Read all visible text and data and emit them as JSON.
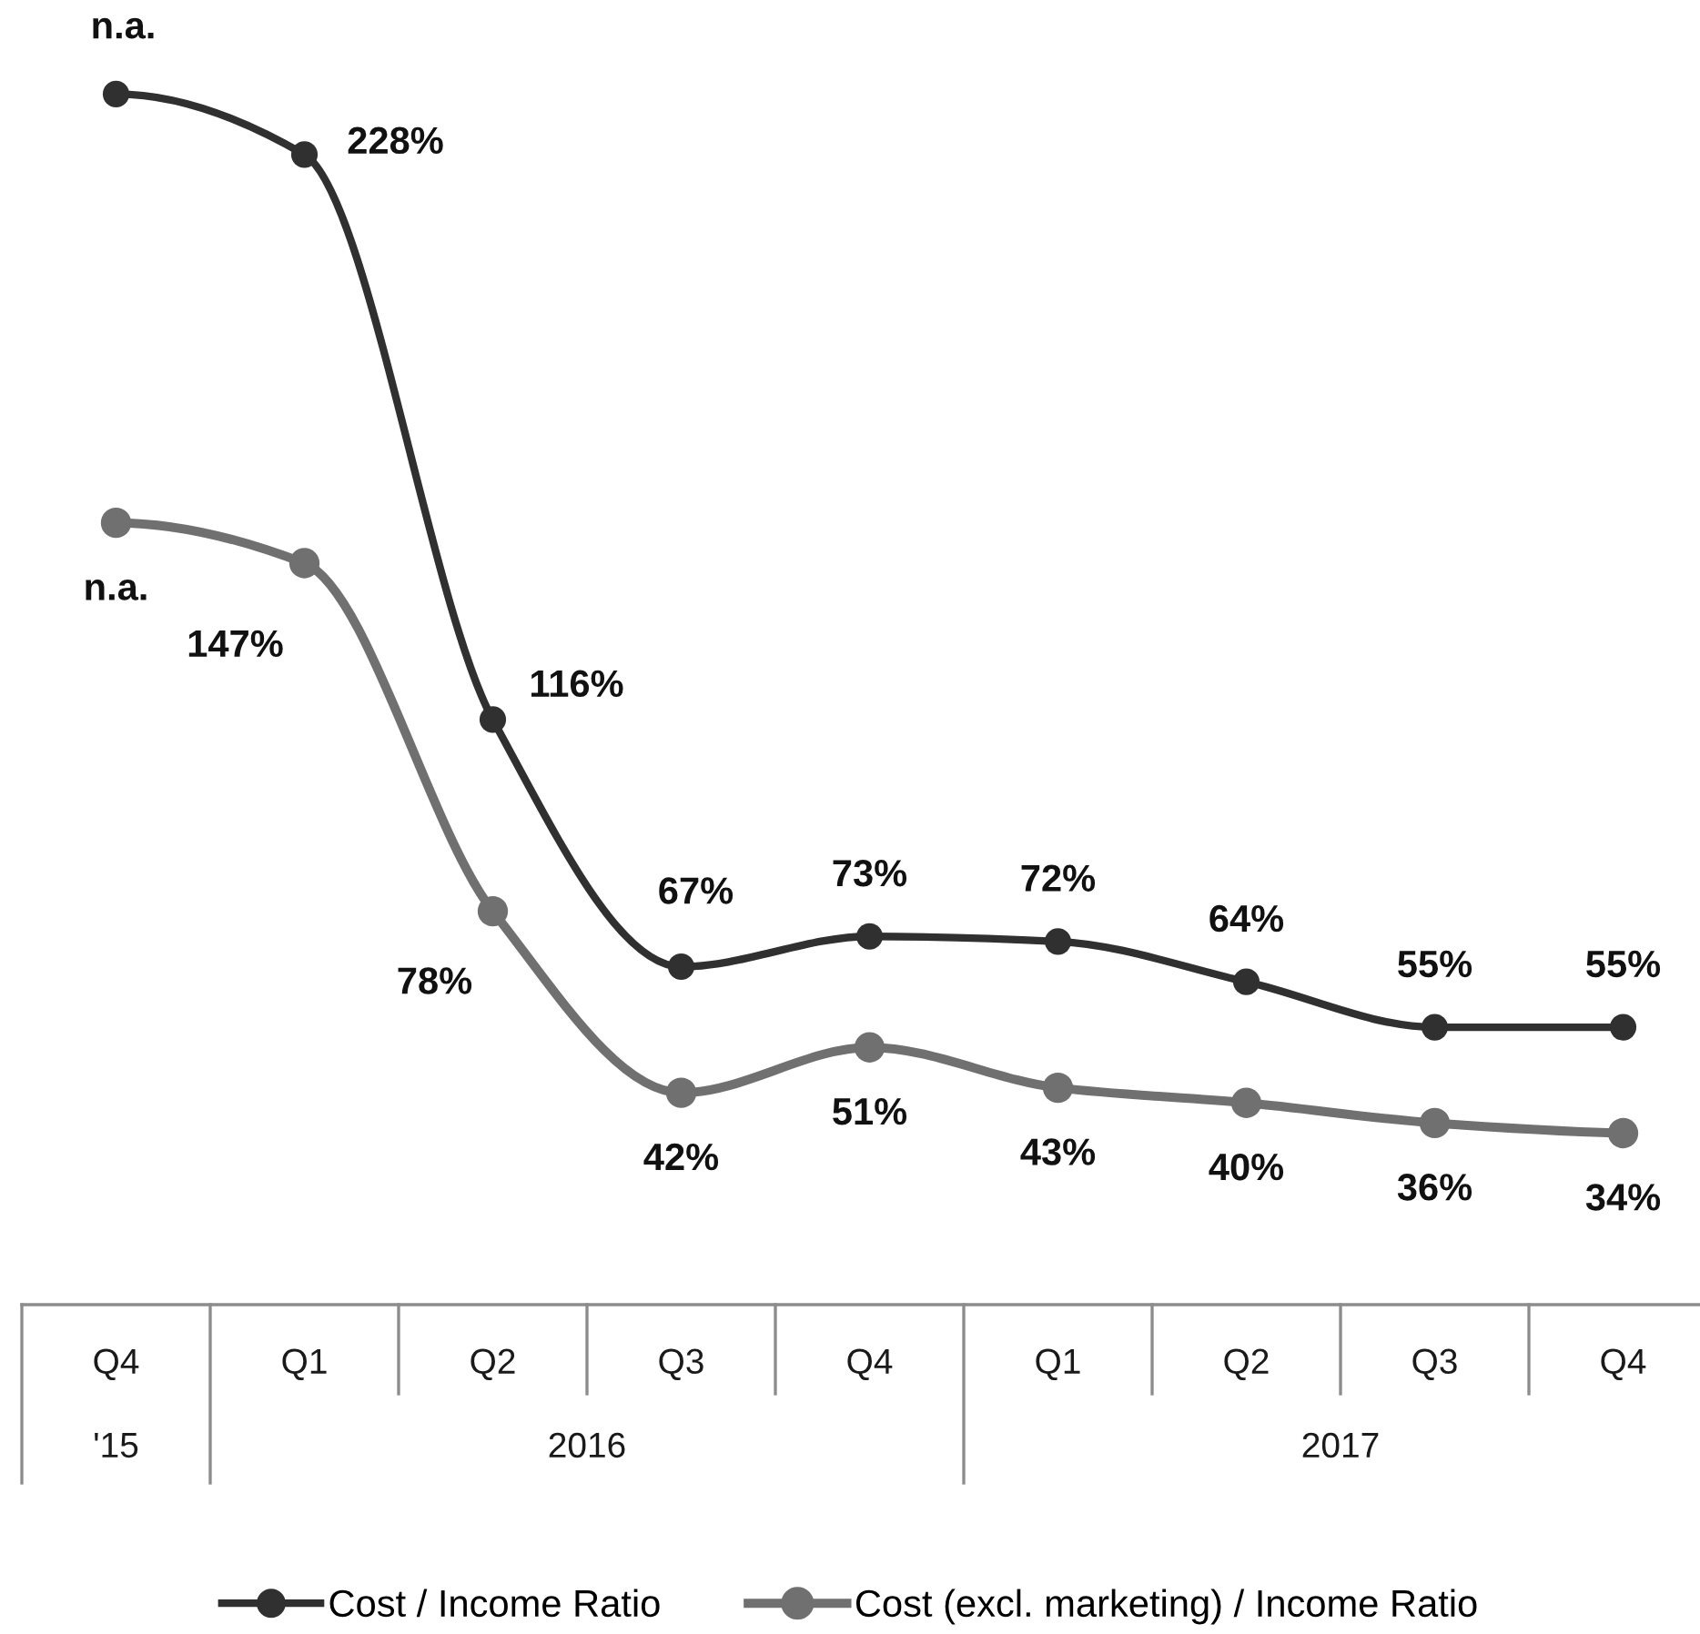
{
  "chart_data": {
    "type": "line",
    "categories": [
      "Q4",
      "Q1",
      "Q2",
      "Q3",
      "Q4",
      "Q1",
      "Q2",
      "Q3",
      "Q4"
    ],
    "series": [
      {
        "name": "Cost / Income Ratio",
        "color": "#303030",
        "values": [
          240,
          228,
          116,
          67,
          73,
          72,
          64,
          55,
          55
        ],
        "value_labels": [
          "n.a.",
          "228%",
          "116%",
          "67%",
          "73%",
          "72%",
          "64%",
          "55%",
          "55%"
        ]
      },
      {
        "name": "Cost (excl. marketing) / Income Ratio",
        "color": "#707070",
        "values": [
          155,
          147,
          78,
          42,
          51,
          43,
          40,
          36,
          34
        ],
        "value_labels": [
          "n.a.",
          "147%",
          "78%",
          "42%",
          "51%",
          "43%",
          "40%",
          "36%",
          "34%"
        ]
      }
    ],
    "annotations": [
      "'15",
      "2016",
      "2017"
    ],
    "marker": "circle",
    "line_style": "solid",
    "legend": "bottom",
    "tick_labels": "x"
  }
}
